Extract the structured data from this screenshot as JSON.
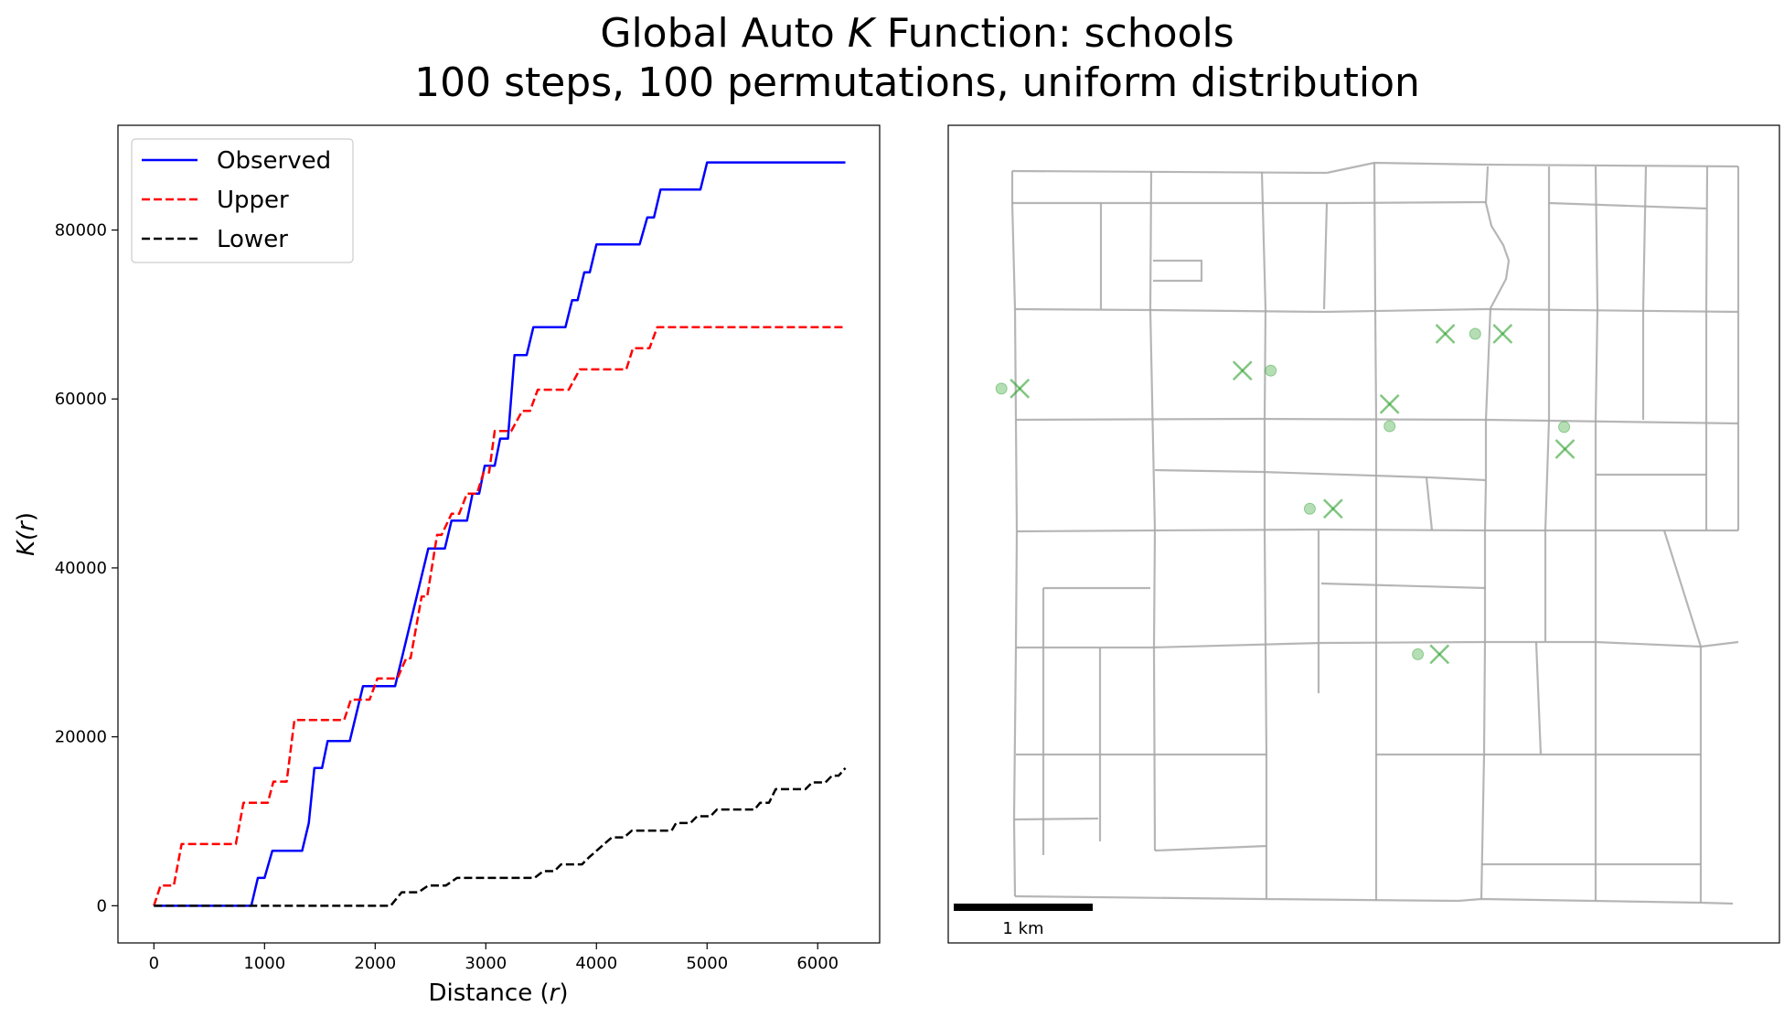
{
  "figure": {
    "title_line1_prefix": "Global Auto ",
    "title_line1_italic": "K",
    "title_line1_suffix": " Function: schools",
    "title_line2": "100 steps, 100 permutations, uniform distribution"
  },
  "chart_data": [
    {
      "type": "line",
      "xlabel_main": "Distance (",
      "xlabel_italic": "r",
      "xlabel_end": ")",
      "ylabel_main": "K(",
      "ylabel_italic": "r",
      "ylabel_end": ")",
      "xlim": [
        -325,
        6560
      ],
      "ylim": [
        -4400,
        92400
      ],
      "x_ticks": [
        0,
        1000,
        2000,
        3000,
        4000,
        5000,
        6000
      ],
      "y_ticks": [
        0,
        20000,
        40000,
        60000,
        80000
      ],
      "grid": false,
      "legend_position": "upper-left",
      "series": [
        {
          "name": "Observed",
          "color": "#0000ff",
          "style": "solid",
          "points": [
            [
              0,
              0
            ],
            [
              880,
              0
            ],
            [
              940,
              3300
            ],
            [
              1000,
              3300
            ],
            [
              1070,
              6500
            ],
            [
              1340,
              6500
            ],
            [
              1400,
              9800
            ],
            [
              1450,
              16300
            ],
            [
              1520,
              16300
            ],
            [
              1570,
              19500
            ],
            [
              1770,
              19500
            ],
            [
              1890,
              26000
            ],
            [
              2180,
              26000
            ],
            [
              2480,
              42300
            ],
            [
              2630,
              42300
            ],
            [
              2690,
              45600
            ],
            [
              2830,
              45600
            ],
            [
              2880,
              48800
            ],
            [
              2940,
              48800
            ],
            [
              2990,
              52100
            ],
            [
              3080,
              52100
            ],
            [
              3130,
              55300
            ],
            [
              3200,
              55300
            ],
            [
              3260,
              65200
            ],
            [
              3370,
              65200
            ],
            [
              3430,
              68500
            ],
            [
              3720,
              68500
            ],
            [
              3780,
              71700
            ],
            [
              3830,
              71700
            ],
            [
              3890,
              75000
            ],
            [
              3940,
              75000
            ],
            [
              4000,
              78300
            ],
            [
              4390,
              78300
            ],
            [
              4460,
              81500
            ],
            [
              4520,
              81500
            ],
            [
              4580,
              84800
            ],
            [
              4940,
              84800
            ],
            [
              5000,
              88000
            ],
            [
              6250,
              88000
            ]
          ]
        },
        {
          "name": "Upper",
          "color": "#ff0000",
          "style": "dashed",
          "points": [
            [
              0,
              0
            ],
            [
              60,
              2400
            ],
            [
              180,
              2400
            ],
            [
              250,
              7300
            ],
            [
              740,
              7300
            ],
            [
              810,
              12200
            ],
            [
              1030,
              12200
            ],
            [
              1080,
              14700
            ],
            [
              1200,
              14700
            ],
            [
              1270,
              22000
            ],
            [
              1720,
              22000
            ],
            [
              1780,
              24400
            ],
            [
              1950,
              24400
            ],
            [
              2020,
              26900
            ],
            [
              2200,
              26900
            ],
            [
              2280,
              29300
            ],
            [
              2320,
              29300
            ],
            [
              2420,
              36600
            ],
            [
              2470,
              36600
            ],
            [
              2560,
              43900
            ],
            [
              2600,
              43900
            ],
            [
              2690,
              46400
            ],
            [
              2760,
              46400
            ],
            [
              2830,
              48800
            ],
            [
              2920,
              48800
            ],
            [
              2980,
              51300
            ],
            [
              3030,
              51300
            ],
            [
              3080,
              56200
            ],
            [
              3230,
              56200
            ],
            [
              3330,
              58600
            ],
            [
              3400,
              58600
            ],
            [
              3470,
              61100
            ],
            [
              3750,
              61100
            ],
            [
              3850,
              63500
            ],
            [
              4270,
              63500
            ],
            [
              4330,
              66000
            ],
            [
              4480,
              66000
            ],
            [
              4550,
              68500
            ],
            [
              6250,
              68500
            ]
          ]
        },
        {
          "name": "Lower",
          "color": "#000000",
          "style": "dashed",
          "points": [
            [
              0,
              0
            ],
            [
              2140,
              0
            ],
            [
              2240,
              1600
            ],
            [
              2390,
              1600
            ],
            [
              2480,
              2400
            ],
            [
              2640,
              2400
            ],
            [
              2740,
              3300
            ],
            [
              3440,
              3300
            ],
            [
              3520,
              4100
            ],
            [
              3620,
              4100
            ],
            [
              3680,
              4900
            ],
            [
              3870,
              4900
            ],
            [
              3930,
              5700
            ],
            [
              4000,
              6500
            ],
            [
              4070,
              7300
            ],
            [
              4140,
              8100
            ],
            [
              4250,
              8100
            ],
            [
              4320,
              8900
            ],
            [
              4680,
              8900
            ],
            [
              4720,
              9800
            ],
            [
              4850,
              9800
            ],
            [
              4910,
              10600
            ],
            [
              5030,
              10600
            ],
            [
              5090,
              11400
            ],
            [
              5430,
              11400
            ],
            [
              5480,
              12200
            ],
            [
              5560,
              12200
            ],
            [
              5620,
              13800
            ],
            [
              5890,
              13800
            ],
            [
              5950,
              14600
            ],
            [
              6070,
              14600
            ],
            [
              6130,
              15400
            ],
            [
              6190,
              15400
            ],
            [
              6250,
              16300
            ]
          ]
        }
      ]
    },
    {
      "type": "scatter",
      "title": "",
      "scale_bar_label": "1 km",
      "axes_visible": false,
      "network_color": "#a9a9a9",
      "marker_color": "#2ca02c",
      "series": [
        {
          "name": "",
          "marker": "x",
          "points": [
            [
              86,
              322
            ],
            [
              354,
              300
            ],
            [
              531,
              341
            ],
            [
              598,
              255
            ],
            [
              667,
              255
            ],
            [
              742,
              396
            ],
            [
              463,
              469
            ],
            [
              591,
              647
            ]
          ]
        },
        {
          "name": "",
          "marker": "o",
          "points": [
            [
              64,
              322
            ],
            [
              388,
              300
            ],
            [
              531,
              368
            ],
            [
              634,
              255
            ],
            [
              741,
              369
            ],
            [
              435,
              469
            ],
            [
              565,
              647
            ]
          ]
        }
      ]
    }
  ]
}
